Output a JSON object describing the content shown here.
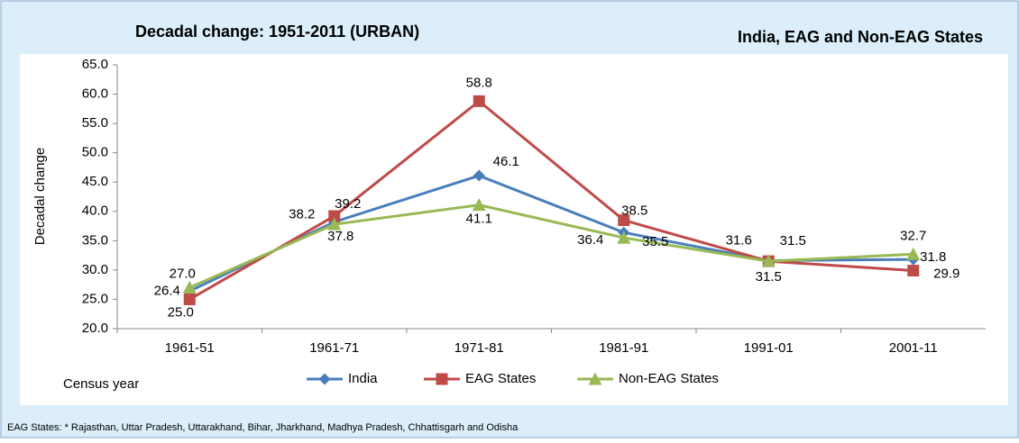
{
  "chart_data": {
    "type": "line",
    "title": "Decadal change: 1951-2011 (URBAN)",
    "subtitle": "India, EAG and Non-EAG States",
    "y_label": "Decadal change",
    "x_label": "Census year",
    "footnote": "EAG States: * Rajasthan, Uttar Pradesh, Uttarakhand, Bihar, Jharkhand, Madhya Pradesh, Chhattisgarh and Odisha",
    "categories": [
      "1961-51",
      "1961-71",
      "1971-81",
      "1981-91",
      "1991-01",
      "2001-11"
    ],
    "series": [
      {
        "name": "India",
        "color": "#4a7ebb",
        "marker": "diamond",
        "values": [
          26.4,
          38.2,
          46.1,
          36.4,
          31.6,
          31.8
        ],
        "value_labels": [
          "26.4",
          "38.2",
          "46.1",
          "36.4",
          "31.6",
          "31.8"
        ]
      },
      {
        "name": "EAG States",
        "color": "#be4b48",
        "marker": "square",
        "values": [
          25.0,
          39.2,
          58.8,
          38.5,
          31.5,
          29.9
        ],
        "value_labels": [
          "25.0",
          "39.2",
          "58.8",
          "38.5",
          "31.5",
          "29.9"
        ]
      },
      {
        "name": "Non-EAG States",
        "color": "#98b954",
        "marker": "triangle",
        "values": [
          27.0,
          37.8,
          41.1,
          35.5,
          31.5,
          32.7
        ],
        "value_labels": [
          "27.0",
          "37.8",
          "41.1",
          "35.5",
          "31.5",
          "32.7"
        ]
      }
    ],
    "ylim": [
      20,
      65
    ],
    "yticks": [
      {
        "value": 20,
        "label": "20.0"
      },
      {
        "value": 25,
        "label": "25.0"
      },
      {
        "value": 30,
        "label": "30.0"
      },
      {
        "value": 35,
        "label": "35.0"
      },
      {
        "value": 40,
        "label": "40.0"
      },
      {
        "value": 45,
        "label": "45.0"
      },
      {
        "value": 50,
        "label": "50.0"
      },
      {
        "value": 55,
        "label": "55.0"
      },
      {
        "value": 60,
        "label": "60.0"
      },
      {
        "value": 65,
        "label": "65.0"
      }
    ],
    "grid": false,
    "legend": "bottom"
  }
}
